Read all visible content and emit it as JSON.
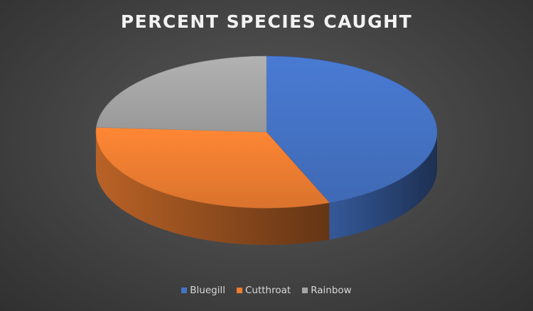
{
  "chart_data": {
    "type": "pie",
    "title": "PERCENT SPECIES CAUGHT",
    "categories": [
      "Bluegill",
      "Cutthroat",
      "Rainbow"
    ],
    "values": [
      44,
      32,
      24
    ],
    "colors": [
      "#4472c4",
      "#ed7d31",
      "#a5a5a5"
    ],
    "style": "3d",
    "legend": "bottom"
  }
}
